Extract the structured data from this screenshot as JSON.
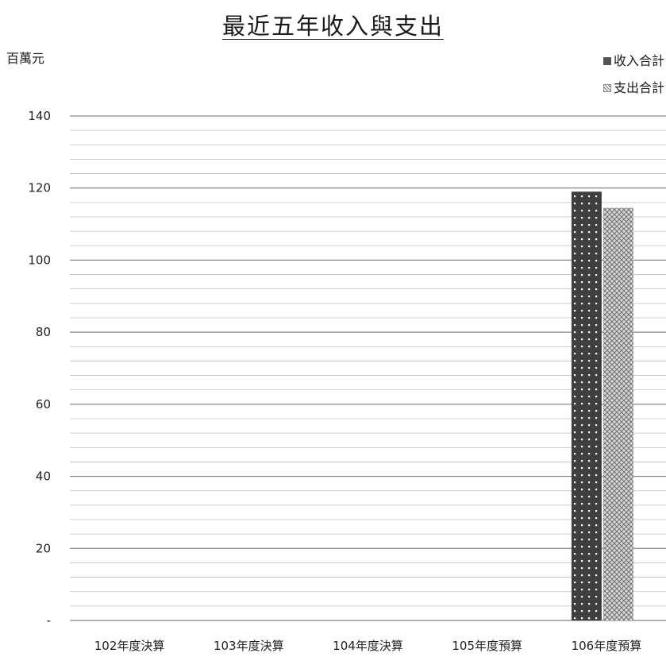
{
  "chart_data": {
    "type": "bar",
    "title": "最近五年收入與支出",
    "ylabel": "百萬元",
    "xlabel": "",
    "categories": [
      "102年度決算",
      "103年度決算",
      "104年度決算",
      "105年度預算",
      "106年度預算"
    ],
    "series": [
      {
        "name": "收入合計",
        "values": [
          null,
          null,
          null,
          null,
          119
        ]
      },
      {
        "name": "支出合計",
        "values": [
          null,
          null,
          null,
          null,
          114.5
        ]
      }
    ],
    "ylim": [
      0,
      140
    ],
    "yticks": [
      {
        "value": 0,
        "label": "-"
      },
      {
        "value": 20,
        "label": "20"
      },
      {
        "value": 40,
        "label": "40"
      },
      {
        "value": 60,
        "label": "60"
      },
      {
        "value": 80,
        "label": "80"
      },
      {
        "value": 100,
        "label": "100"
      },
      {
        "value": 120,
        "label": "120"
      },
      {
        "value": 140,
        "label": "140"
      }
    ],
    "grid": true,
    "legend_position": "top-right",
    "colors": {
      "income": "#444444",
      "expense": "#9a9a9a",
      "grid": "#bfbfbf"
    }
  }
}
